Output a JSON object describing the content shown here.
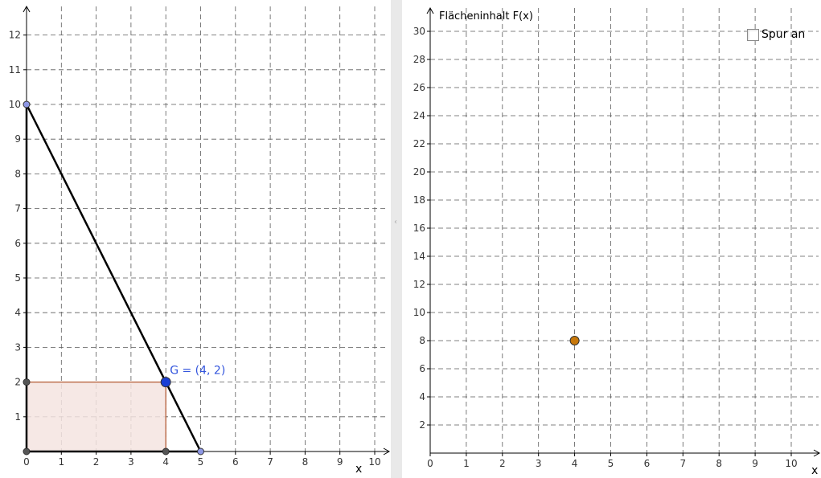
{
  "left_graphics": {
    "x_axis_label": "x",
    "x_ticks": [
      "0",
      "1",
      "2",
      "3",
      "4",
      "5",
      "6",
      "7",
      "8",
      "9",
      "10"
    ],
    "y_ticks": [
      "1",
      "2",
      "3",
      "4",
      "5",
      "6",
      "7",
      "8",
      "9",
      "10",
      "11",
      "12"
    ],
    "point_G": {
      "name": "G",
      "x": 4,
      "y": 2,
      "label": "G = (4, 2)"
    },
    "line_points": [
      [
        0,
        10
      ],
      [
        5,
        0
      ]
    ],
    "rectangle": {
      "x_min": 0,
      "x_max": 4,
      "y_min": 0,
      "y_max": 2
    },
    "colors": {
      "accent_point": "#1a3fd6",
      "label": "#3355dd",
      "rect_edge": "#b0522a",
      "rect_fill": "#f4e4e0",
      "vertex_point": "#8e98e6"
    }
  },
  "right_graphics": {
    "y_axis_label": "Flächeninhalt F(x)",
    "x_axis_label": "x",
    "x_ticks": [
      "0",
      "1",
      "2",
      "3",
      "4",
      "5",
      "6",
      "7",
      "8",
      "9",
      "10"
    ],
    "y_ticks": [
      "2",
      "4",
      "6",
      "8",
      "10",
      "12",
      "14",
      "16",
      "18",
      "20",
      "22",
      "24",
      "26",
      "28",
      "30"
    ],
    "trace_point": {
      "x": 4,
      "y": 8
    },
    "colors": {
      "trace_point": "#c8780a"
    }
  },
  "trace_toggle": {
    "label": "Spur an",
    "checked": false
  }
}
